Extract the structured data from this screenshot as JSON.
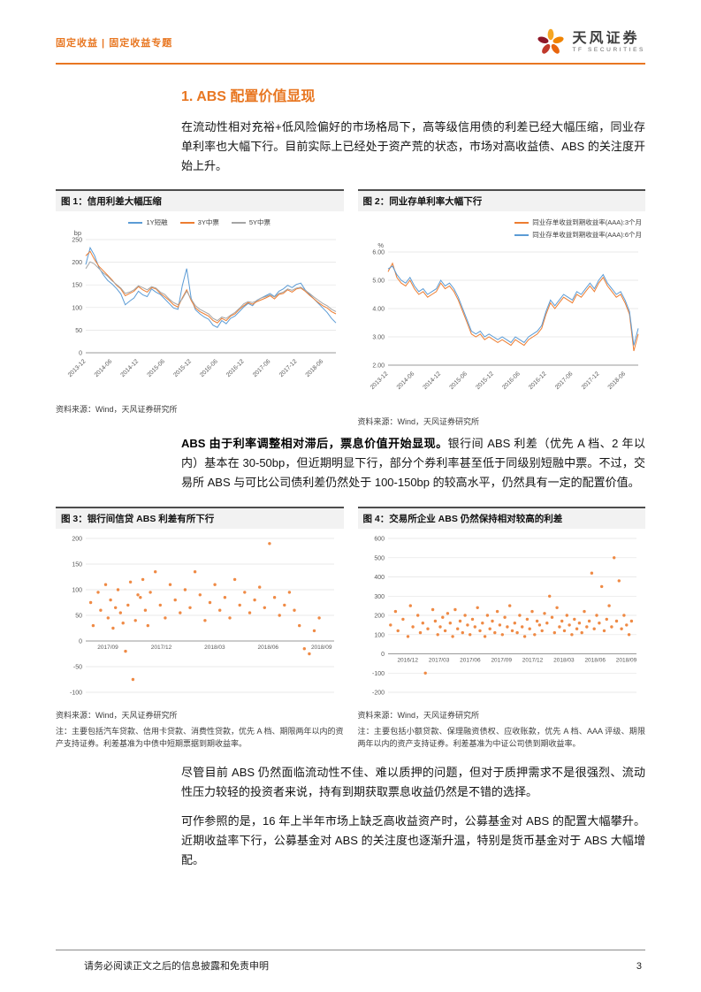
{
  "header": {
    "breadcrumb": "固定收益 | 固定收益专题",
    "brand_name": "天风证券",
    "brand_sub": "TF SECURITIES",
    "accent_color": "#E87722"
  },
  "section": {
    "title": "1. ABS 配置价值显现"
  },
  "paragraphs": {
    "p1": "在流动性相对充裕+低风险偏好的市场格局下，高等级信用债的利差已经大幅压缩，同业存单利率也大幅下行。目前实际上已经处于资产荒的状态，市场对高收益债、ABS 的关注度开始上升。",
    "p2_bold": "ABS 由于利率调整相对滞后，票息价值开始显现。",
    "p2_rest": "银行间 ABS 利差（优先 A 档、2 年以内）基本在 30-50bp，但近期明显下行，部分个券利率甚至低于同级别短融中票。不过，交易所 ABS 与可比公司债利差仍然处于 100-150bp 的较高水平，仍然具有一定的配置价值。",
    "p3": "尽管目前 ABS 仍然面临流动性不佳、难以质押的问题，但对于质押需求不是很强烈、流动性压力较轻的投资者来说，持有到期获取票息收益仍然是不错的选择。",
    "p4": "可作参照的是，16 年上半年市场上缺乏高收益资产时，公募基金对 ABS 的配置大幅攀升。近期收益率下行，公募基金对 ABS 的关注度也逐渐升温，特别是货币基金对于 ABS 大幅增配。"
  },
  "figures": [
    {
      "title": "图 1：信用利差大幅压缩",
      "source": "资料来源：Wind，天风证券研究所"
    },
    {
      "title": "图 2：同业存单利率大幅下行",
      "source": "资料来源：Wind，天风证券研究所"
    },
    {
      "title": "图 3：银行间信贷 ABS 利差有所下行",
      "source": "资料来源：Wind，天风证券研究所",
      "note": "注：主要包括汽车贷款、信用卡贷款、消费性贷款，优先 A 档、期限两年以内的资产支持证券。利差基准为中债中短期票据到期收益率。"
    },
    {
      "title": "图 4：交易所企业 ABS 仍然保持相对较高的利差",
      "source": "资料来源：Wind，天风证券研究所",
      "note": "注：主要包括小额贷款、保理融资债权、应收账款，优先 A 档、AAA 评级、期限两年以内的资产支持证券。利差基准为中证公司债到期收益率。"
    }
  ],
  "footer": {
    "disclaimer": "请务必阅读正文之后的信息披露和免责申明",
    "page_number": "3"
  },
  "chart_data": [
    {
      "type": "line",
      "title": "信用利差大幅压缩",
      "unit": "bp",
      "ylim": [
        0,
        250
      ],
      "yticks": [
        250,
        200,
        150,
        100,
        50,
        0
      ],
      "ytick_labels": [
        "250",
        "200",
        "150",
        "100",
        "50",
        "0"
      ],
      "x_labels": [
        "2013-12",
        "2014-06",
        "2014-12",
        "2015-06",
        "2015-12",
        "2016-06",
        "2016-12",
        "2017-06",
        "2017-12",
        "2018-06"
      ],
      "x_span": 0.95,
      "legend": {
        "stack": false,
        "align": "center"
      },
      "series": [
        {
          "name": "1Y短融",
          "color": "#5B9BD5",
          "values": [
            195,
            232,
            215,
            188,
            172,
            160,
            152,
            142,
            130,
            106,
            114,
            121,
            136,
            128,
            124,
            141,
            134,
            129,
            119,
            109,
            99,
            96,
            148,
            186,
            121,
            95,
            86,
            79,
            74,
            61,
            56,
            71,
            64,
            76,
            81,
            91,
            101,
            109,
            104,
            116,
            121,
            126,
            131,
            124,
            136,
            141,
            149,
            144,
            151,
            154,
            139,
            129,
            119,
            109,
            99,
            89,
            76,
            66
          ]
        },
        {
          "name": "3Y中票",
          "color": "#ED7D31",
          "values": [
            214,
            224,
            206,
            191,
            181,
            171,
            161,
            149,
            141,
            126,
            131,
            136,
            146,
            139,
            134,
            144,
            141,
            131,
            124,
            116,
            106,
            101,
            121,
            139,
            116,
            99,
            91,
            86,
            81,
            71,
            66,
            76,
            71,
            81,
            86,
            96,
            104,
            111,
            107,
            113,
            117,
            121,
            126,
            119,
            129,
            131,
            139,
            134,
            141,
            143,
            136,
            127,
            119,
            111,
            104,
            99,
            91,
            86
          ]
        },
        {
          "name": "5Y中票",
          "color": "#A5A5A5",
          "values": [
            186,
            201,
            196,
            186,
            176,
            169,
            159,
            151,
            143,
            131,
            134,
            139,
            148,
            144,
            139,
            146,
            143,
            134,
            129,
            119,
            111,
            106,
            119,
            136,
            119,
            104,
            96,
            91,
            86,
            76,
            71,
            79,
            76,
            83,
            89,
            98,
            108,
            113,
            111,
            115,
            121,
            124,
            128,
            123,
            131,
            134,
            141,
            138,
            143,
            145,
            138,
            131,
            123,
            116,
            109,
            104,
            96,
            91
          ]
        }
      ]
    },
    {
      "type": "line",
      "title": "同业存单利率大幅下行",
      "unit": "%",
      "ylim": [
        2,
        6
      ],
      "yticks": [
        6,
        5,
        4,
        3,
        2
      ],
      "ytick_labels": [
        "6.00",
        "5.00",
        "4.00",
        "3.00",
        "2.00"
      ],
      "x_labels": [
        "2013-12",
        "2014-06",
        "2014-12",
        "2015-06",
        "2015-12",
        "2016-06",
        "2016-12",
        "2017-06",
        "2017-12",
        "2018-06"
      ],
      "x_span": 0.95,
      "legend": {
        "stack": true,
        "align": "right"
      },
      "series": [
        {
          "name": "同业存单收益到期收益率(AAA):3个月",
          "color": "#ED7D31",
          "values": [
            5.3,
            5.6,
            5.1,
            4.9,
            4.8,
            5.0,
            4.7,
            4.5,
            4.6,
            4.4,
            4.5,
            4.6,
            4.9,
            4.7,
            4.8,
            4.6,
            4.3,
            3.9,
            3.5,
            3.1,
            3.0,
            3.1,
            2.9,
            3.0,
            2.9,
            2.8,
            2.9,
            2.8,
            2.7,
            2.9,
            2.8,
            2.7,
            2.9,
            3.0,
            3.1,
            3.3,
            3.8,
            4.2,
            4.0,
            4.2,
            4.4,
            4.3,
            4.2,
            4.5,
            4.4,
            4.6,
            4.8,
            4.6,
            4.9,
            5.1,
            4.8,
            4.6,
            4.4,
            4.5,
            4.2,
            3.8,
            2.5,
            3.1
          ]
        },
        {
          "name": "同业存单收益到期收益率(AAA):6个月",
          "color": "#5B9BD5",
          "values": [
            5.4,
            5.5,
            5.2,
            5.0,
            4.9,
            5.1,
            4.8,
            4.6,
            4.7,
            4.5,
            4.6,
            4.7,
            5.0,
            4.8,
            4.9,
            4.7,
            4.4,
            4.0,
            3.6,
            3.2,
            3.1,
            3.2,
            3.0,
            3.1,
            3.0,
            2.9,
            3.0,
            2.9,
            2.8,
            3.0,
            2.9,
            2.8,
            3.0,
            3.1,
            3.2,
            3.4,
            3.9,
            4.3,
            4.1,
            4.3,
            4.5,
            4.4,
            4.3,
            4.6,
            4.5,
            4.7,
            4.9,
            4.7,
            5.0,
            5.2,
            4.9,
            4.7,
            4.5,
            4.6,
            4.3,
            3.9,
            2.7,
            3.3
          ]
        }
      ]
    },
    {
      "type": "scatter",
      "title": "银行间信贷 ABS 利差有所下行",
      "ylim": [
        -100,
        200
      ],
      "axis_at": 0,
      "yticks": [
        200,
        150,
        100,
        50,
        0,
        -50,
        -100
      ],
      "ytick_labels": [
        "200",
        "150",
        "100",
        "50",
        "0",
        "-50",
        "-100"
      ],
      "x_labels": [
        "2017/09",
        "2017/12",
        "2018/03",
        "2018/06",
        "2018/09"
      ],
      "x_span": 0.86,
      "x_off": 0.05,
      "point_color": "#ED7D31",
      "points": [
        [
          0.02,
          75
        ],
        [
          0.03,
          30
        ],
        [
          0.05,
          95
        ],
        [
          0.06,
          60
        ],
        [
          0.08,
          110
        ],
        [
          0.09,
          45
        ],
        [
          0.1,
          80
        ],
        [
          0.11,
          25
        ],
        [
          0.12,
          65
        ],
        [
          0.13,
          100
        ],
        [
          0.14,
          55
        ],
        [
          0.15,
          35
        ],
        [
          0.16,
          -20
        ],
        [
          0.17,
          70
        ],
        [
          0.18,
          115
        ],
        [
          0.19,
          -75
        ],
        [
          0.2,
          40
        ],
        [
          0.21,
          90
        ],
        [
          0.22,
          85
        ],
        [
          0.23,
          120
        ],
        [
          0.24,
          60
        ],
        [
          0.25,
          30
        ],
        [
          0.26,
          95
        ],
        [
          0.28,
          135
        ],
        [
          0.3,
          70
        ],
        [
          0.32,
          45
        ],
        [
          0.34,
          110
        ],
        [
          0.36,
          80
        ],
        [
          0.38,
          55
        ],
        [
          0.4,
          100
        ],
        [
          0.42,
          65
        ],
        [
          0.44,
          135
        ],
        [
          0.46,
          90
        ],
        [
          0.48,
          40
        ],
        [
          0.5,
          75
        ],
        [
          0.52,
          110
        ],
        [
          0.54,
          60
        ],
        [
          0.56,
          85
        ],
        [
          0.58,
          45
        ],
        [
          0.6,
          120
        ],
        [
          0.62,
          70
        ],
        [
          0.64,
          95
        ],
        [
          0.66,
          55
        ],
        [
          0.68,
          80
        ],
        [
          0.7,
          105
        ],
        [
          0.72,
          65
        ],
        [
          0.74,
          190
        ],
        [
          0.76,
          85
        ],
        [
          0.78,
          50
        ],
        [
          0.8,
          70
        ],
        [
          0.82,
          95
        ],
        [
          0.84,
          60
        ],
        [
          0.86,
          30
        ],
        [
          0.88,
          -15
        ],
        [
          0.9,
          -25
        ],
        [
          0.92,
          20
        ],
        [
          0.94,
          45
        ]
      ]
    },
    {
      "type": "scatter",
      "title": "交易所企业 ABS 仍然保持相对较高的利差",
      "ylim": [
        -200,
        600
      ],
      "axis_at": 0,
      "yticks": [
        600,
        500,
        400,
        300,
        200,
        100,
        0,
        -100,
        -200
      ],
      "ytick_labels": [
        "600",
        "500",
        "400",
        "300",
        "200",
        "100",
        "0",
        "-100",
        "-200"
      ],
      "x_labels": [
        "2016/12",
        "2017/03",
        "2017/06",
        "2017/09",
        "2017/12",
        "2018/03",
        "2018/06",
        "2018/09"
      ],
      "x_span": 0.88,
      "x_off": 0.04,
      "point_color": "#ED7D31",
      "points": [
        [
          0.01,
          150
        ],
        [
          0.03,
          220
        ],
        [
          0.04,
          120
        ],
        [
          0.06,
          180
        ],
        [
          0.08,
          90
        ],
        [
          0.09,
          250
        ],
        [
          0.1,
          140
        ],
        [
          0.12,
          200
        ],
        [
          0.13,
          110
        ],
        [
          0.14,
          160
        ],
        [
          0.15,
          -100
        ],
        [
          0.16,
          130
        ],
        [
          0.18,
          230
        ],
        [
          0.19,
          170
        ],
        [
          0.2,
          100
        ],
        [
          0.21,
          140
        ],
        [
          0.22,
          190
        ],
        [
          0.23,
          120
        ],
        [
          0.24,
          210
        ],
        [
          0.25,
          160
        ],
        [
          0.26,
          90
        ],
        [
          0.27,
          230
        ],
        [
          0.28,
          130
        ],
        [
          0.29,
          170
        ],
        [
          0.3,
          110
        ],
        [
          0.31,
          200
        ],
        [
          0.32,
          150
        ],
        [
          0.33,
          100
        ],
        [
          0.34,
          180
        ],
        [
          0.35,
          140
        ],
        [
          0.36,
          240
        ],
        [
          0.37,
          120
        ],
        [
          0.38,
          160
        ],
        [
          0.39,
          90
        ],
        [
          0.4,
          200
        ],
        [
          0.41,
          130
        ],
        [
          0.42,
          170
        ],
        [
          0.43,
          110
        ],
        [
          0.44,
          220
        ],
        [
          0.45,
          150
        ],
        [
          0.46,
          100
        ],
        [
          0.47,
          190
        ],
        [
          0.48,
          140
        ],
        [
          0.49,
          250
        ],
        [
          0.5,
          120
        ],
        [
          0.51,
          160
        ],
        [
          0.52,
          110
        ],
        [
          0.53,
          200
        ],
        [
          0.54,
          140
        ],
        [
          0.55,
          90
        ],
        [
          0.56,
          180
        ],
        [
          0.57,
          130
        ],
        [
          0.58,
          220
        ],
        [
          0.59,
          100
        ],
        [
          0.6,
          170
        ],
        [
          0.61,
          150
        ],
        [
          0.62,
          120
        ],
        [
          0.63,
          210
        ],
        [
          0.64,
          160
        ],
        [
          0.65,
          300
        ],
        [
          0.66,
          190
        ],
        [
          0.67,
          110
        ],
        [
          0.68,
          240
        ],
        [
          0.69,
          140
        ],
        [
          0.7,
          170
        ],
        [
          0.71,
          120
        ],
        [
          0.72,
          200
        ],
        [
          0.73,
          150
        ],
        [
          0.74,
          100
        ],
        [
          0.75,
          180
        ],
        [
          0.76,
          130
        ],
        [
          0.77,
          160
        ],
        [
          0.78,
          110
        ],
        [
          0.79,
          220
        ],
        [
          0.8,
          140
        ],
        [
          0.81,
          170
        ],
        [
          0.82,
          420
        ],
        [
          0.83,
          130
        ],
        [
          0.84,
          200
        ],
        [
          0.85,
          160
        ],
        [
          0.86,
          350
        ],
        [
          0.87,
          120
        ],
        [
          0.88,
          180
        ],
        [
          0.89,
          250
        ],
        [
          0.9,
          140
        ],
        [
          0.91,
          500
        ],
        [
          0.92,
          170
        ],
        [
          0.93,
          380
        ],
        [
          0.94,
          130
        ],
        [
          0.95,
          200
        ],
        [
          0.96,
          150
        ],
        [
          0.97,
          100
        ],
        [
          0.98,
          170
        ]
      ]
    }
  ]
}
